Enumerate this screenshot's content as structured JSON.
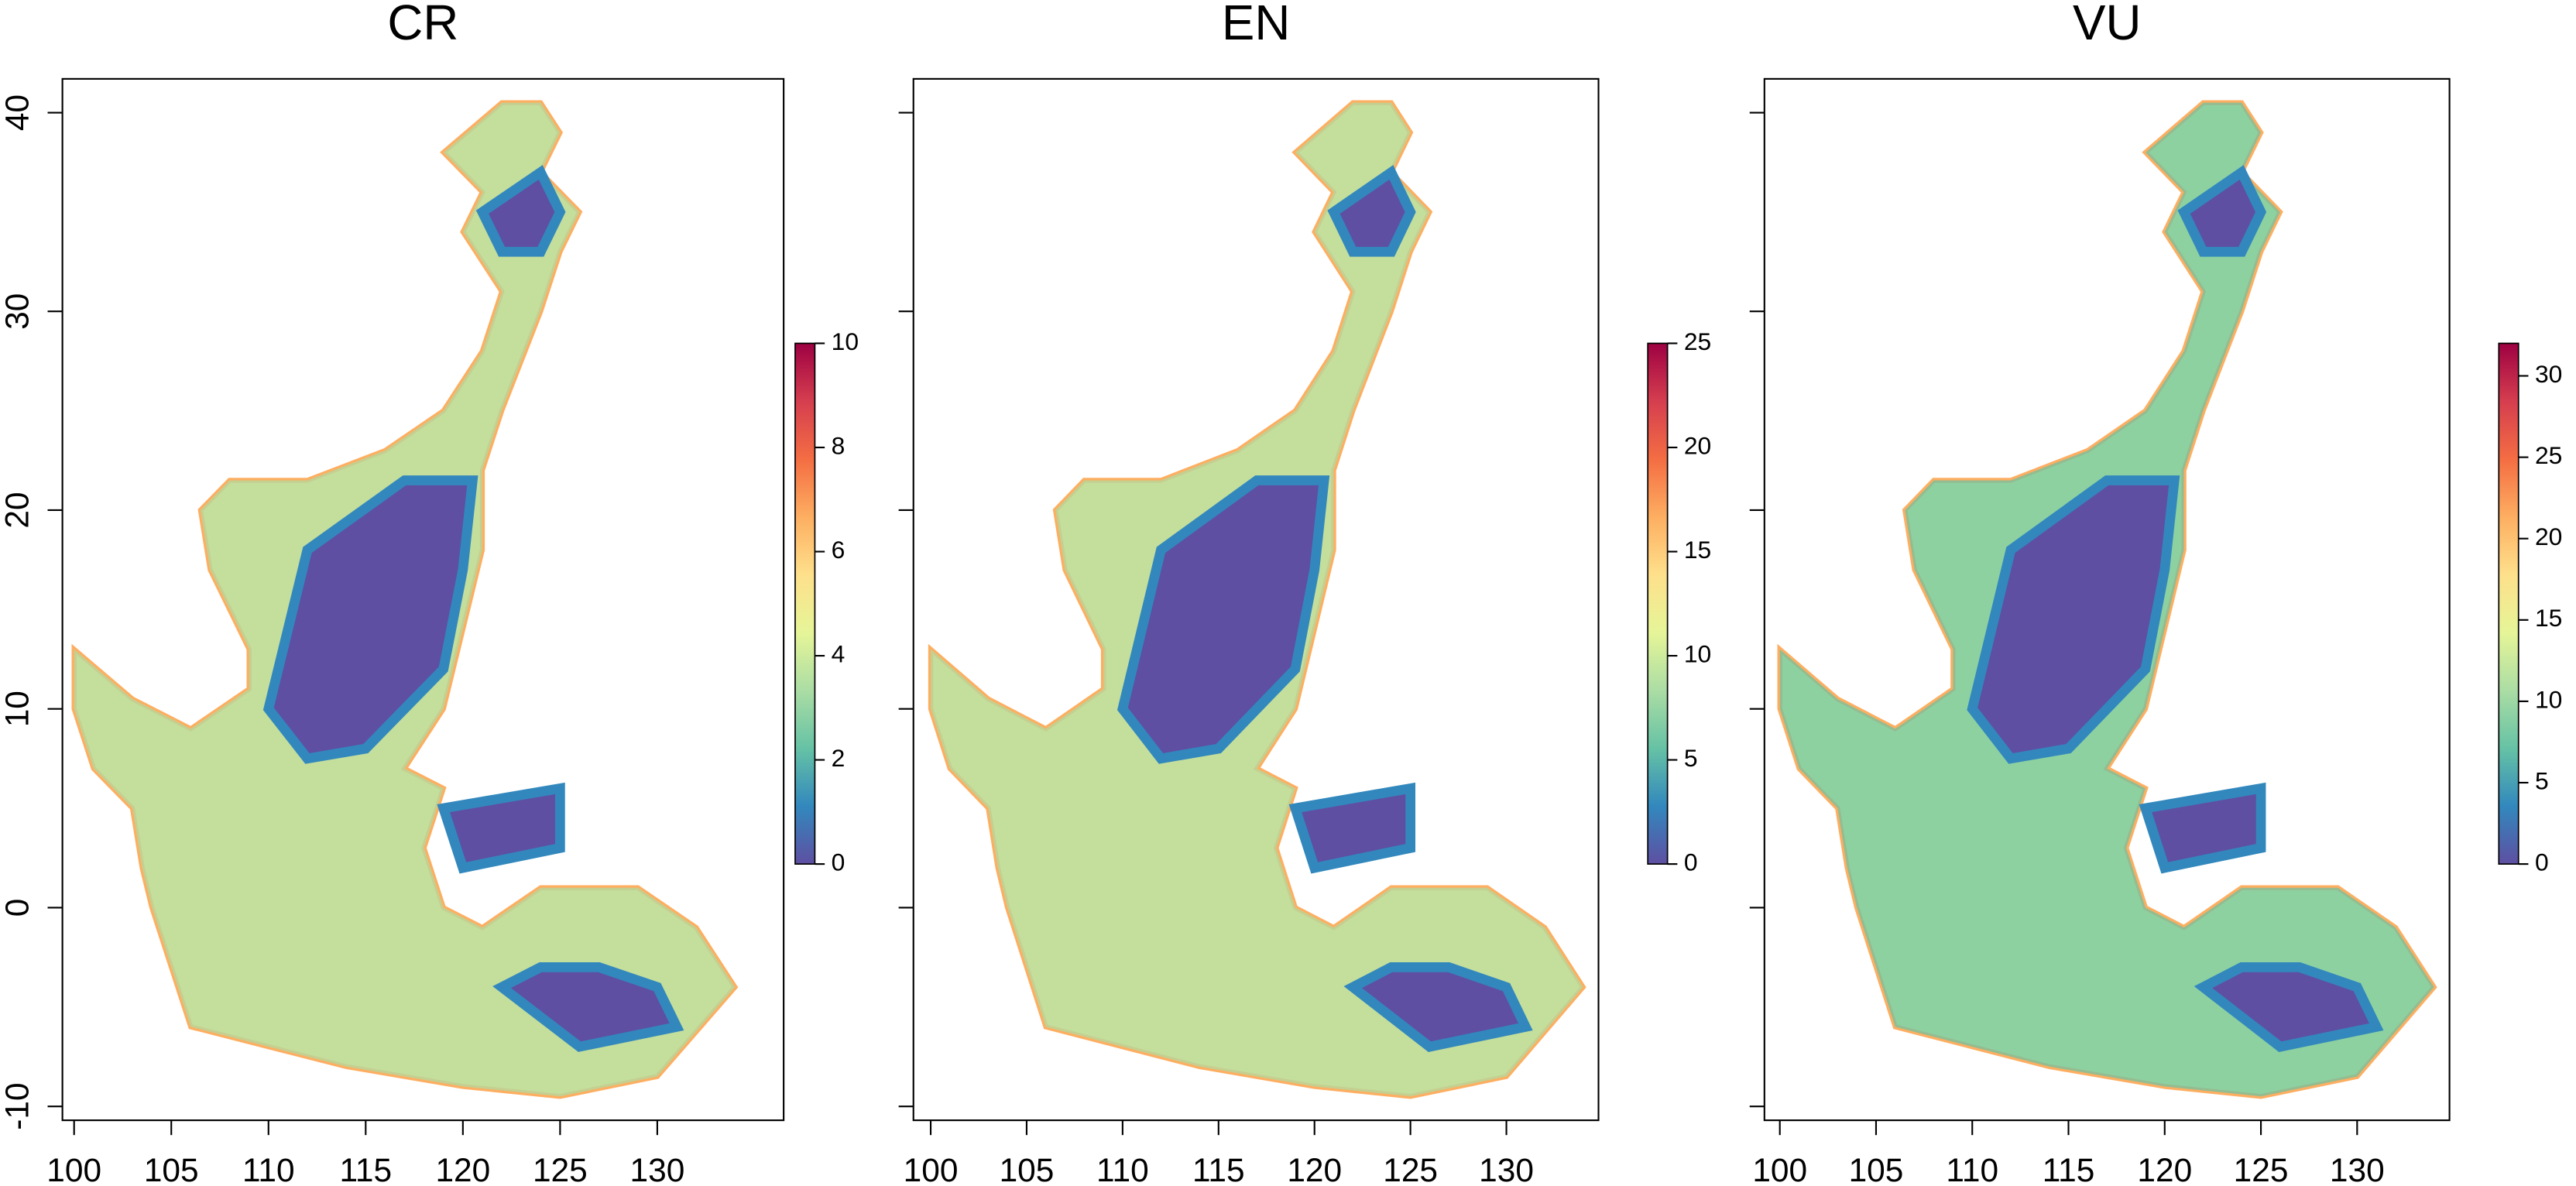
{
  "chart_data": [
    {
      "type": "heatmap",
      "title": "CR",
      "xlim": [
        99.4,
        136.5
      ],
      "ylim": [
        -10.7,
        41.7
      ],
      "xticks": [
        100,
        105,
        110,
        115,
        120,
        125,
        130
      ],
      "yticks": [
        -10,
        0,
        10,
        20,
        30,
        40
      ],
      "ytick_labels": true,
      "colorbar": {
        "lim": [
          0,
          10
        ],
        "ticks": [
          0,
          2,
          4,
          6,
          8,
          10
        ]
      },
      "colors": [
        "#5e4fa2",
        "#3288bd",
        "#66c2a5",
        "#abdda4",
        "#e6f598",
        "#fee08b",
        "#fdae61",
        "#f46d43",
        "#d53e4f",
        "#9e0142"
      ]
    },
    {
      "type": "heatmap",
      "title": "EN",
      "xlim": [
        99.1,
        134.8
      ],
      "ylim": [
        -10.7,
        41.7
      ],
      "xticks": [
        100,
        105,
        110,
        115,
        120,
        125,
        130
      ],
      "yticks": [
        -10,
        0,
        10,
        20,
        30,
        40
      ],
      "ytick_labels": false,
      "colorbar": {
        "lim": [
          0,
          25
        ],
        "ticks": [
          0,
          5,
          10,
          15,
          20,
          25
        ]
      },
      "colors": [
        "#5e4fa2",
        "#3288bd",
        "#66c2a5",
        "#abdda4",
        "#e6f598",
        "#fee08b",
        "#fdae61",
        "#f46d43",
        "#d53e4f",
        "#9e0142"
      ]
    },
    {
      "type": "heatmap",
      "title": "VU",
      "xlim": [
        99.2,
        134.8
      ],
      "ylim": [
        -10.7,
        41.7
      ],
      "xticks": [
        100,
        105,
        110,
        115,
        120,
        125,
        130
      ],
      "yticks": [
        -10,
        0,
        10,
        20,
        30,
        40
      ],
      "ytick_labels": false,
      "colorbar": {
        "lim": [
          0,
          32
        ],
        "ticks": [
          0,
          5,
          10,
          15,
          20,
          25,
          30
        ]
      },
      "colors": [
        "#5e4fa2",
        "#3288bd",
        "#66c2a5",
        "#abdda4",
        "#e6f598",
        "#fee08b",
        "#fdae61",
        "#f46d43",
        "#d53e4f",
        "#9e0142"
      ]
    }
  ]
}
